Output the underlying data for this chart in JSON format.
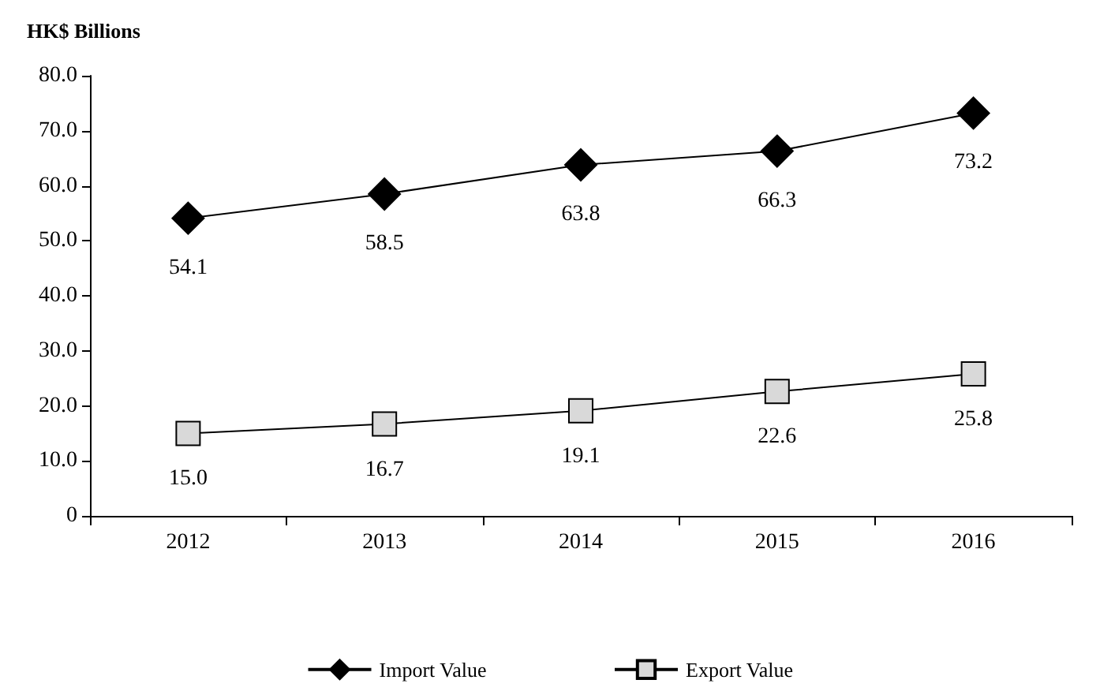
{
  "chart_data": {
    "type": "line",
    "ylabel": "HK$ Billions",
    "categories": [
      "2012",
      "2013",
      "2014",
      "2015",
      "2016"
    ],
    "series": [
      {
        "name": "Import Value",
        "color": "#000000",
        "marker": "diamond",
        "values": [
          54.1,
          58.5,
          63.8,
          66.3,
          73.2
        ],
        "value_labels": [
          "54.1",
          "58.5",
          "63.8",
          "66.3",
          "73.2"
        ]
      },
      {
        "name": "Export Value",
        "color": "#000000",
        "marker": "square",
        "values": [
          15.0,
          16.7,
          19.1,
          22.6,
          25.8
        ],
        "value_labels": [
          "15.0",
          "16.7",
          "19.1",
          "22.6",
          "25.8"
        ]
      }
    ],
    "ylim": [
      0,
      80
    ],
    "yticks": [
      0,
      {
        "value": 10,
        "label": "10.0"
      },
      {
        "value": 20,
        "label": "20.0"
      },
      {
        "value": 30,
        "label": "30.0"
      },
      {
        "value": 40,
        "label": "40.0"
      },
      {
        "value": 50,
        "label": "50.0"
      },
      {
        "value": 60,
        "label": "60.0"
      },
      {
        "value": 70,
        "label": "70.0"
      },
      {
        "value": 80,
        "label": "80.0"
      }
    ],
    "grid": false,
    "legend": "bottom",
    "line_style": "solid"
  }
}
